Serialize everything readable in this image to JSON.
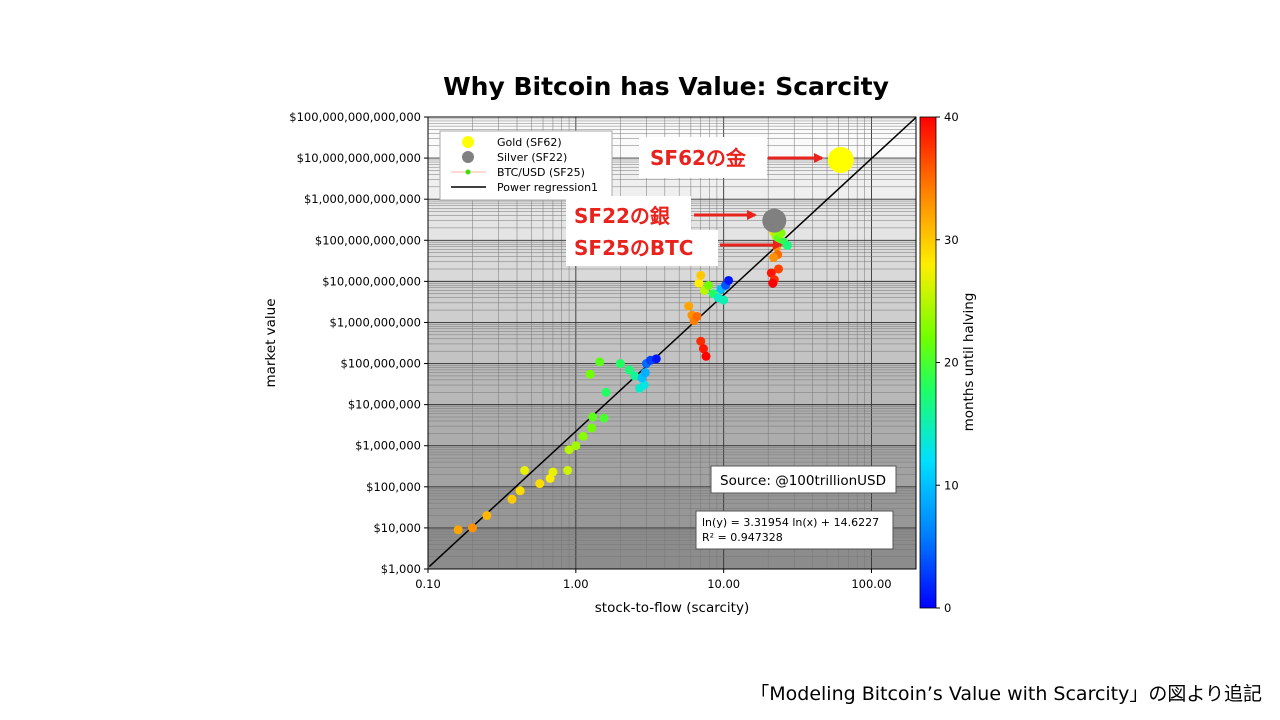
{
  "caption": "「Modeling Bitcoin’s Value with Scarcity」の図より追記",
  "chart_data": {
    "type": "scatter",
    "title": "Why Bitcoin has Value: Scarcity",
    "xlabel": "stock-to-flow (scarcity)",
    "ylabel": "market value",
    "x_scale": "log",
    "y_scale": "log",
    "xlim": [
      0.1,
      200
    ],
    "ylim": [
      1000,
      100000000000000
    ],
    "x_ticks": [
      0.1,
      1,
      10,
      100
    ],
    "x_tick_labels": [
      "0.10",
      "1.00",
      "10.00",
      "100.00"
    ],
    "y_ticks": [
      1000,
      10000,
      100000,
      1000000,
      10000000,
      100000000,
      1000000000,
      10000000000,
      100000000000,
      1000000000000,
      10000000000000,
      100000000000000
    ],
    "y_tick_labels": [
      "$1,000",
      "$10,000",
      "$100,000",
      "$1,000,000",
      "$10,000,000",
      "$100,000,000",
      "$1,000,000,000",
      "$10,000,000,000",
      "$100,000,000,000",
      "$1,000,000,000,000",
      "$10,000,000,000,000",
      "$100,000,000,000,000"
    ],
    "grid": true,
    "legend_position": "top-left",
    "legend": [
      "Gold (SF62)",
      "Silver (SF22)",
      "BTC/USD (SF25)",
      "Power regression1"
    ],
    "colorbar": {
      "label": "months until halving",
      "min": 0,
      "max": 40,
      "ticks": [
        0,
        10,
        20,
        30,
        40
      ],
      "colormap": "jet-like"
    },
    "gold": {
      "sf": 62,
      "value": 9000000000000,
      "color": "#ffff00"
    },
    "silver": {
      "sf": 22,
      "value": 300000000000,
      "color": "#808080"
    },
    "regression": {
      "a": 3.31954,
      "b": 14.6227,
      "equation": "ln(y) = 3.31954 ln(x) + 14.6227",
      "r2": "R² = 0.947328",
      "color": "#000000"
    },
    "btc": [
      {
        "sf": 0.16,
        "value": 9000,
        "months": 32
      },
      {
        "sf": 0.2,
        "value": 10000,
        "months": 33
      },
      {
        "sf": 0.25,
        "value": 20000,
        "months": 31
      },
      {
        "sf": 0.37,
        "value": 50000,
        "months": 30
      },
      {
        "sf": 0.42,
        "value": 80000,
        "months": 29
      },
      {
        "sf": 0.45,
        "value": 250000,
        "months": 27
      },
      {
        "sf": 0.57,
        "value": 120000,
        "months": 29
      },
      {
        "sf": 0.67,
        "value": 160000,
        "months": 28
      },
      {
        "sf": 0.7,
        "value": 230000,
        "months": 27
      },
      {
        "sf": 0.88,
        "value": 250000,
        "months": 26
      },
      {
        "sf": 0.9,
        "value": 800000,
        "months": 25
      },
      {
        "sf": 1.0,
        "value": 1000000,
        "months": 24
      },
      {
        "sf": 1.12,
        "value": 1700000,
        "months": 23
      },
      {
        "sf": 1.28,
        "value": 2700000,
        "months": 22
      },
      {
        "sf": 1.3,
        "value": 5000000,
        "months": 21
      },
      {
        "sf": 1.55,
        "value": 4700000,
        "months": 20
      },
      {
        "sf": 1.25,
        "value": 55000000,
        "months": 22
      },
      {
        "sf": 1.45,
        "value": 110000000,
        "months": 21
      },
      {
        "sf": 1.6,
        "value": 20000000,
        "months": 18
      },
      {
        "sf": 2.0,
        "value": 100000000,
        "months": 18
      },
      {
        "sf": 2.3,
        "value": 70000000,
        "months": 17
      },
      {
        "sf": 2.5,
        "value": 50000000,
        "months": 16
      },
      {
        "sf": 2.7,
        "value": 25000000,
        "months": 14
      },
      {
        "sf": 2.9,
        "value": 30000000,
        "months": 13
      },
      {
        "sf": 2.8,
        "value": 45000000,
        "months": 10
      },
      {
        "sf": 2.95,
        "value": 60000000,
        "months": 9
      },
      {
        "sf": 3.0,
        "value": 100000000,
        "months": 5
      },
      {
        "sf": 3.2,
        "value": 120000000,
        "months": 3
      },
      {
        "sf": 3.5,
        "value": 130000000,
        "months": 1
      },
      {
        "sf": 5.8,
        "value": 2500000000,
        "months": 32
      },
      {
        "sf": 6.1,
        "value": 1500000000,
        "months": 33
      },
      {
        "sf": 6.3,
        "value": 1100000000,
        "months": 34
      },
      {
        "sf": 6.6,
        "value": 1400000000,
        "months": 35
      },
      {
        "sf": 6.8,
        "value": 9000000000,
        "months": 28
      },
      {
        "sf": 7.0,
        "value": 14000000000,
        "months": 30
      },
      {
        "sf": 7.4,
        "value": 6000000000,
        "months": 25
      },
      {
        "sf": 7.9,
        "value": 8000000000,
        "months": 22
      },
      {
        "sf": 8.5,
        "value": 5000000000,
        "months": 18
      },
      {
        "sf": 9.2,
        "value": 4000000000,
        "months": 14
      },
      {
        "sf": 9.6,
        "value": 6500000000,
        "months": 10
      },
      {
        "sf": 10.0,
        "value": 3500000000,
        "months": 15
      },
      {
        "sf": 10.3,
        "value": 8000000000,
        "months": 4
      },
      {
        "sf": 10.8,
        "value": 10500000000,
        "months": 1
      },
      {
        "sf": 7.0,
        "value": 350000000,
        "months": 38
      },
      {
        "sf": 7.3,
        "value": 230000000,
        "months": 39
      },
      {
        "sf": 7.6,
        "value": 150000000,
        "months": 40
      },
      {
        "sf": 21.0,
        "value": 220000000000,
        "months": 27
      },
      {
        "sf": 21.8,
        "value": 160000000000,
        "months": 29
      },
      {
        "sf": 22.5,
        "value": 130000000000,
        "months": 24
      },
      {
        "sf": 23.5,
        "value": 110000000000,
        "months": 21
      },
      {
        "sf": 24.5,
        "value": 150000000000,
        "months": 23
      },
      {
        "sf": 25.5,
        "value": 90000000000,
        "months": 19
      },
      {
        "sf": 27.0,
        "value": 75000000000,
        "months": 17
      },
      {
        "sf": 22.8,
        "value": 70000000000,
        "months": 33
      },
      {
        "sf": 23.2,
        "value": 45000000000,
        "months": 35
      },
      {
        "sf": 21.8,
        "value": 38000000000,
        "months": 33
      },
      {
        "sf": 23.5,
        "value": 20000000000,
        "months": 37
      },
      {
        "sf": 21.0,
        "value": 16000000000,
        "months": 39
      },
      {
        "sf": 22.0,
        "value": 11000000000,
        "months": 38
      },
      {
        "sf": 21.5,
        "value": 9000000000,
        "months": 40
      }
    ],
    "annotations": {
      "gold_label": "SF62の金",
      "silver_label": "SF22の銀",
      "btc_label": "SF25のBTC",
      "source": "Source: @100trillionUSD"
    }
  }
}
